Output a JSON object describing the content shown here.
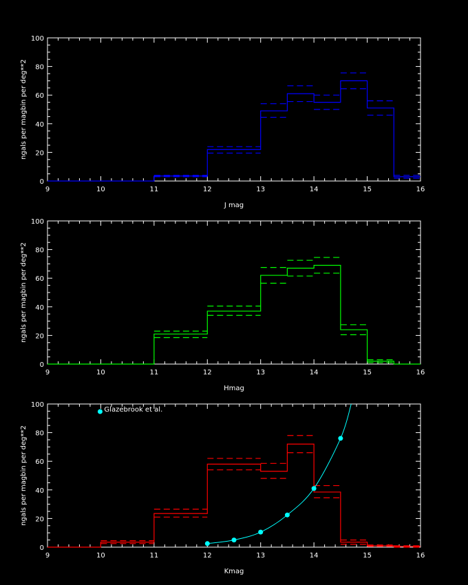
{
  "chart_data": [
    {
      "type": "bar",
      "xlabel": "J mag",
      "ylabel": "ngals per magbin per deg**2",
      "xlim": [
        9,
        16
      ],
      "ylim": [
        0,
        100
      ],
      "xticks": [
        "9",
        "10",
        "11",
        "12",
        "13",
        "14",
        "15",
        "16"
      ],
      "yticks": [
        "0",
        "20",
        "40",
        "60",
        "80",
        "100"
      ],
      "color": "#0000ff",
      "bins": [
        {
          "x0": 9,
          "x1": 11,
          "value": 0,
          "lo": 0,
          "hi": 0
        },
        {
          "x0": 11,
          "x1": 12,
          "value": 3.5,
          "lo": 3,
          "hi": 4
        },
        {
          "x0": 12,
          "x1": 13,
          "value": 22,
          "lo": 19.5,
          "hi": 24
        },
        {
          "x0": 13,
          "x1": 13.5,
          "value": 49,
          "lo": 44.5,
          "hi": 54
        },
        {
          "x0": 13.5,
          "x1": 14,
          "value": 61,
          "lo": 55.5,
          "hi": 66.5
        },
        {
          "x0": 14,
          "x1": 14.5,
          "value": 55,
          "lo": 50,
          "hi": 60
        },
        {
          "x0": 14.5,
          "x1": 15,
          "value": 70,
          "lo": 64.5,
          "hi": 75.5
        },
        {
          "x0": 15,
          "x1": 15.5,
          "value": 51,
          "lo": 46,
          "hi": 56
        },
        {
          "x0": 15.5,
          "x1": 16,
          "value": 3,
          "lo": 2,
          "hi": 4
        }
      ]
    },
    {
      "type": "bar",
      "xlabel": "Hmag",
      "ylabel": "ngals per magbin per deg**2",
      "xlim": [
        9,
        16
      ],
      "ylim": [
        0,
        100
      ],
      "xticks": [
        "9",
        "10",
        "11",
        "12",
        "13",
        "14",
        "15",
        "16"
      ],
      "yticks": [
        "0",
        "20",
        "40",
        "60",
        "80",
        "100"
      ],
      "color": "#00ff00",
      "bins": [
        {
          "x0": 9,
          "x1": 11,
          "value": 0,
          "lo": 0,
          "hi": 0
        },
        {
          "x0": 11,
          "x1": 12,
          "value": 21,
          "lo": 18.5,
          "hi": 23
        },
        {
          "x0": 12,
          "x1": 13,
          "value": 37,
          "lo": 34,
          "hi": 40.5
        },
        {
          "x0": 13,
          "x1": 13.5,
          "value": 62,
          "lo": 56.5,
          "hi": 67.5
        },
        {
          "x0": 13.5,
          "x1": 14,
          "value": 67,
          "lo": 61.5,
          "hi": 72.5
        },
        {
          "x0": 14,
          "x1": 14.5,
          "value": 69,
          "lo": 63.5,
          "hi": 74.5
        },
        {
          "x0": 14.5,
          "x1": 15,
          "value": 24,
          "lo": 20.5,
          "hi": 27.5
        },
        {
          "x0": 15,
          "x1": 15.5,
          "value": 2,
          "lo": 1,
          "hi": 3
        },
        {
          "x0": 15.5,
          "x1": 16,
          "value": 0,
          "lo": 0,
          "hi": 0
        }
      ]
    },
    {
      "type": "bar",
      "xlabel": "Kmag",
      "ylabel": "ngals per magbin per deg**2",
      "xlim": [
        9,
        16
      ],
      "ylim": [
        0,
        100
      ],
      "xticks": [
        "9",
        "10",
        "11",
        "12",
        "13",
        "14",
        "15",
        "16"
      ],
      "yticks": [
        "0",
        "20",
        "40",
        "60",
        "80",
        "100"
      ],
      "color": "#ff0000",
      "bins": [
        {
          "x0": 9,
          "x1": 10,
          "value": 0,
          "lo": 0,
          "hi": 0
        },
        {
          "x0": 10,
          "x1": 11,
          "value": 3.5,
          "lo": 2.5,
          "hi": 4.5
        },
        {
          "x0": 11,
          "x1": 12,
          "value": 23.5,
          "lo": 21,
          "hi": 26.5
        },
        {
          "x0": 12,
          "x1": 13,
          "value": 58,
          "lo": 54,
          "hi": 62
        },
        {
          "x0": 13,
          "x1": 13.5,
          "value": 53,
          "lo": 48,
          "hi": 58.5
        },
        {
          "x0": 13.5,
          "x1": 14,
          "value": 72,
          "lo": 66,
          "hi": 78
        },
        {
          "x0": 14,
          "x1": 14.5,
          "value": 38.5,
          "lo": 34.5,
          "hi": 43
        },
        {
          "x0": 14.5,
          "x1": 15,
          "value": 3.5,
          "lo": 2,
          "hi": 5
        },
        {
          "x0": 15,
          "x1": 15.5,
          "value": 1,
          "lo": 0.5,
          "hi": 1.5
        },
        {
          "x0": 15.5,
          "x1": 16,
          "value": 0.5,
          "lo": 0,
          "hi": 1
        }
      ],
      "overlay": {
        "name": "Glazebrook et al.",
        "color": "#00ffff",
        "points": [
          {
            "x": 12,
            "y": 2.5
          },
          {
            "x": 12.5,
            "y": 5
          },
          {
            "x": 13,
            "y": 10.5
          },
          {
            "x": 13.5,
            "y": 22.5
          },
          {
            "x": 14,
            "y": 41
          },
          {
            "x": 14.5,
            "y": 76
          }
        ],
        "curve_extends_to": {
          "x": 14.7,
          "y": 100
        }
      }
    }
  ]
}
